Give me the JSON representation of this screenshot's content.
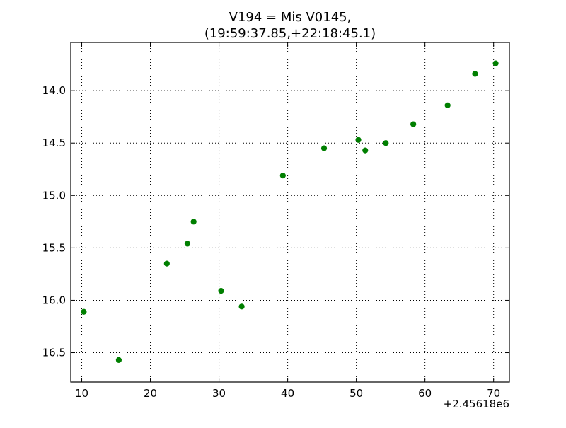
{
  "chart_data": {
    "type": "scatter",
    "title_line1": "V194 = Mis V0145,",
    "title_line2": "(19:59:37.85,+22:18:45.1)",
    "xlabel": "",
    "ylabel": "",
    "x_offset_label": "+2.45618e6",
    "xlim": [
      8.4,
      72.3
    ],
    "ylim": [
      16.78,
      13.54
    ],
    "y_inverted": true,
    "grid": true,
    "xticks": [
      10,
      20,
      30,
      40,
      50,
      60,
      70
    ],
    "xtick_labels": [
      "10",
      "20",
      "30",
      "40",
      "50",
      "60",
      "70"
    ],
    "yticks": [
      14.0,
      14.5,
      15.0,
      15.5,
      16.0,
      16.5
    ],
    "ytick_labels": [
      "14.0",
      "14.5",
      "15.0",
      "15.5",
      "16.0",
      "16.5"
    ],
    "marker_color": "#007f00",
    "points": [
      {
        "x": 10.3,
        "y": 16.11
      },
      {
        "x": 15.4,
        "y": 16.57
      },
      {
        "x": 22.4,
        "y": 15.65
      },
      {
        "x": 25.4,
        "y": 15.46
      },
      {
        "x": 26.3,
        "y": 15.25
      },
      {
        "x": 30.3,
        "y": 15.91
      },
      {
        "x": 33.3,
        "y": 16.06
      },
      {
        "x": 39.3,
        "y": 14.81
      },
      {
        "x": 45.3,
        "y": 14.55
      },
      {
        "x": 50.3,
        "y": 14.47
      },
      {
        "x": 51.3,
        "y": 14.57
      },
      {
        "x": 54.3,
        "y": 14.5
      },
      {
        "x": 58.3,
        "y": 14.32
      },
      {
        "x": 63.3,
        "y": 14.14
      },
      {
        "x": 67.3,
        "y": 13.84
      },
      {
        "x": 70.3,
        "y": 13.74
      }
    ]
  }
}
